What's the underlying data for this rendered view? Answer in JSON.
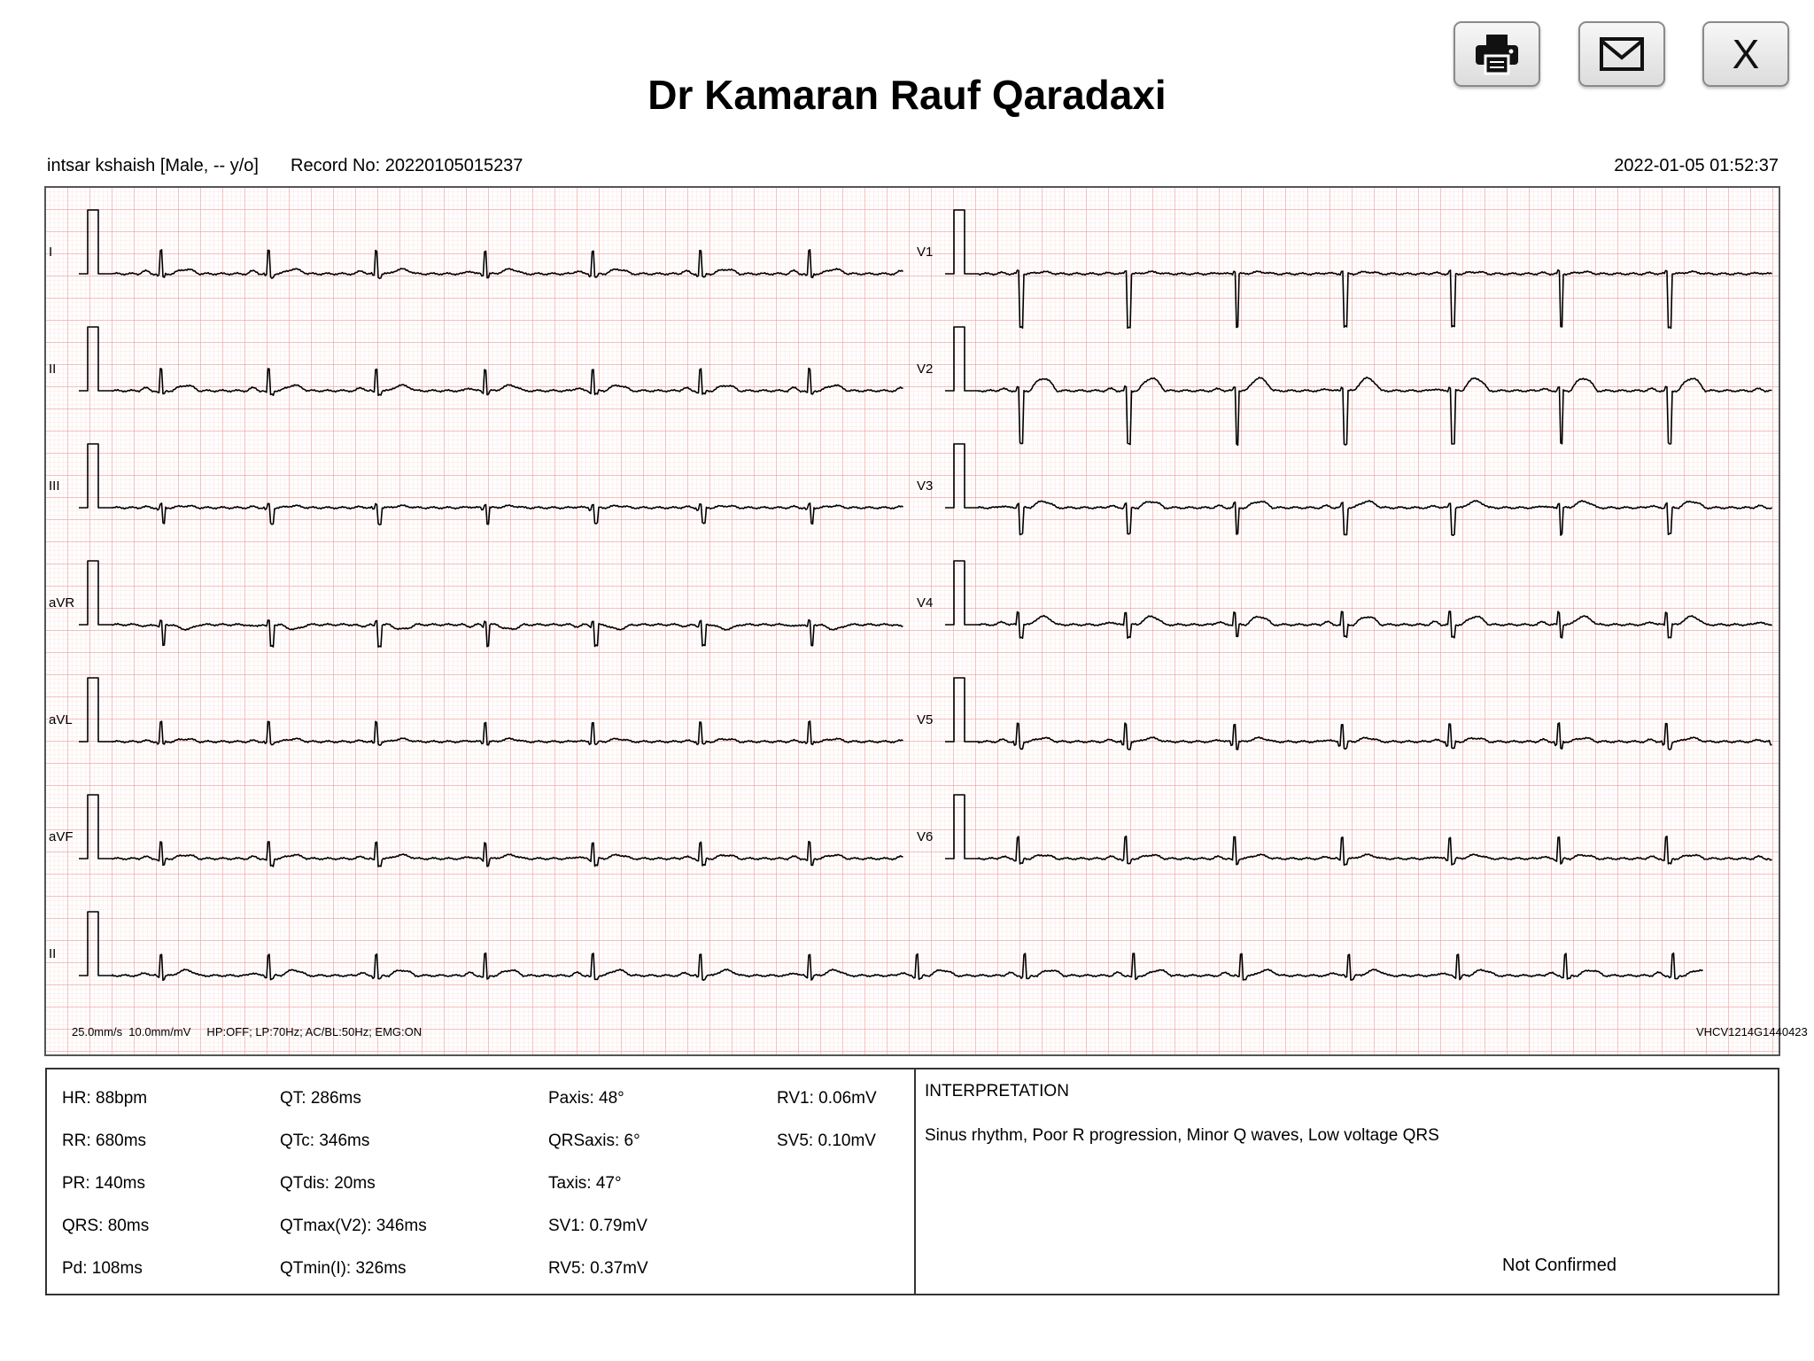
{
  "title": "Dr Kamaran Rauf Qaradaxi",
  "toolbar": {
    "print_icon": "printer-icon",
    "email_icon": "envelope-icon",
    "close_label": "X"
  },
  "patient": {
    "name_info": "intsar kshaish [Male, -- y/o]",
    "record": "Record No: 20220105015237",
    "datetime": "2022-01-05 01:52:37"
  },
  "ecg": {
    "leads_left": [
      "I",
      "II",
      "III",
      "aVR",
      "aVL",
      "aVF"
    ],
    "leads_right": [
      "V1",
      "V2",
      "V3",
      "V4",
      "V5",
      "V6"
    ],
    "rhythm_lead": "II",
    "settings": "25.0mm/s  10.0mm/mV     HP:OFF; LP:70Hz; AC/BL:50Hz; EMG:ON",
    "device_id": "VHCV1214G1440423",
    "colors": {
      "grid_major": "#f19a9a",
      "grid_minor": "#fbdede",
      "trace": "#000000"
    }
  },
  "measurements": {
    "col1": [
      "HR: 88bpm",
      "RR: 680ms",
      "PR: 140ms",
      "QRS: 80ms",
      "Pd: 108ms"
    ],
    "col2": [
      "QT: 286ms",
      "QTc: 346ms",
      "QTdis: 20ms",
      "QTmax(V2): 346ms",
      "QTmin(I): 326ms"
    ],
    "col3": [
      "Paxis: 48°",
      "QRSaxis: 6°",
      "Taxis: 47°",
      "SV1: 0.79mV",
      "RV5: 0.37mV"
    ],
    "col4": [
      "RV1: 0.06mV",
      "SV5: 0.10mV"
    ]
  },
  "interpretation": {
    "title": "INTERPRETATION",
    "text": "Sinus rhythm, Poor R progression, Minor Q waves, Low voltage QRS",
    "status": "Not Confirmed"
  }
}
